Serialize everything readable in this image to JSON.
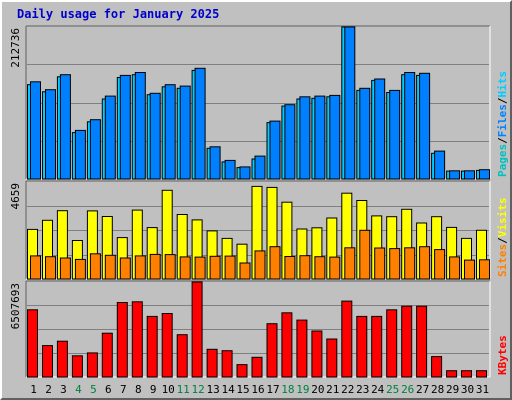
{
  "title": "Daily usage for January 2025",
  "colors": {
    "hits": "#00ccff",
    "files": "#0080ff",
    "pages": "#00c0c0",
    "visits": "#ffff00",
    "sites": "#ff8000",
    "kbytes": "#ff0000",
    "weekend_day": "#008040",
    "day": "#000000"
  },
  "chart_data": [
    {
      "type": "bar",
      "ylabel_parts": [
        "Pages",
        "/",
        "Files",
        "/",
        "Hits"
      ],
      "ymax_label": "212736",
      "ylim": [
        0,
        212736
      ],
      "categories": [
        "1",
        "2",
        "3",
        "4",
        "5",
        "6",
        "7",
        "8",
        "9",
        "10",
        "11",
        "12",
        "13",
        "14",
        "15",
        "16",
        "17",
        "18",
        "19",
        "20",
        "21",
        "22",
        "23",
        "24",
        "25",
        "26",
        "27",
        "28",
        "29",
        "30",
        "31"
      ],
      "series": [
        {
          "name": "Hits",
          "values": [
            132000,
            122000,
            143000,
            65000,
            80000,
            112000,
            142000,
            146000,
            118000,
            129000,
            127000,
            152000,
            43000,
            24000,
            16000,
            28000,
            79000,
            102000,
            112000,
            113000,
            115000,
            212736,
            124000,
            138000,
            121000,
            146000,
            145000,
            36000,
            11000,
            11000,
            12000
          ]
        },
        {
          "name": "Files",
          "values": [
            136000,
            125000,
            146000,
            68000,
            83000,
            116000,
            145000,
            149000,
            120000,
            132000,
            130000,
            155000,
            45000,
            26000,
            17000,
            32000,
            81000,
            104000,
            115000,
            116000,
            117000,
            212736,
            127000,
            140000,
            124000,
            149000,
            148000,
            39000,
            11500,
            11500,
            13000
          ]
        }
      ]
    },
    {
      "type": "bar",
      "ylabel_parts": [
        "Sites",
        "/",
        "Visits"
      ],
      "ymax_label": "4659",
      "ylim": [
        0,
        4659
      ],
      "categories": [
        "1",
        "2",
        "3",
        "4",
        "5",
        "6",
        "7",
        "8",
        "9",
        "10",
        "11",
        "12",
        "13",
        "14",
        "15",
        "16",
        "17",
        "18",
        "19",
        "20",
        "21",
        "22",
        "23",
        "24",
        "25",
        "26",
        "27",
        "28",
        "29",
        "30",
        "31"
      ],
      "series": [
        {
          "name": "Visits",
          "values": [
            2380,
            2820,
            3280,
            1850,
            3270,
            3000,
            1990,
            3310,
            2470,
            4260,
            3100,
            2840,
            2310,
            1950,
            1670,
            4450,
            4400,
            3690,
            2400,
            2460,
            2930,
            4120,
            3770,
            3030,
            2990,
            3350,
            2690,
            2990,
            2480,
            1950,
            2340
          ]
        },
        {
          "name": "Sites",
          "values": [
            1110,
            1070,
            1010,
            940,
            1210,
            1140,
            1010,
            1110,
            1180,
            1170,
            1060,
            1050,
            1090,
            1100,
            770,
            1350,
            1550,
            1080,
            1120,
            1070,
            1050,
            1500,
            2340,
            1490,
            1460,
            1500,
            1550,
            1410,
            1060,
            910,
            920
          ]
        }
      ]
    },
    {
      "type": "bar",
      "ylabel_parts": [
        "KBytes"
      ],
      "ymax_label": "6507693",
      "ylim": [
        0,
        6507693
      ],
      "categories": [
        "1",
        "2",
        "3",
        "4",
        "5",
        "6",
        "7",
        "8",
        "9",
        "10",
        "11",
        "12",
        "13",
        "14",
        "15",
        "16",
        "17",
        "18",
        "19",
        "20",
        "21",
        "22",
        "23",
        "24",
        "25",
        "26",
        "27",
        "28",
        "29",
        "30",
        "31"
      ],
      "series": [
        {
          "name": "KBytes",
          "values": [
            4600000,
            2150000,
            2450000,
            1450000,
            1650000,
            3000000,
            5100000,
            5150000,
            4150000,
            4350000,
            2900000,
            6507693,
            1900000,
            1800000,
            850000,
            1350000,
            3650000,
            4400000,
            3900000,
            3150000,
            2600000,
            5200000,
            4150000,
            4150000,
            4600000,
            4850000,
            4850000,
            1400000,
            430000,
            430000,
            430000
          ]
        }
      ]
    }
  ]
}
